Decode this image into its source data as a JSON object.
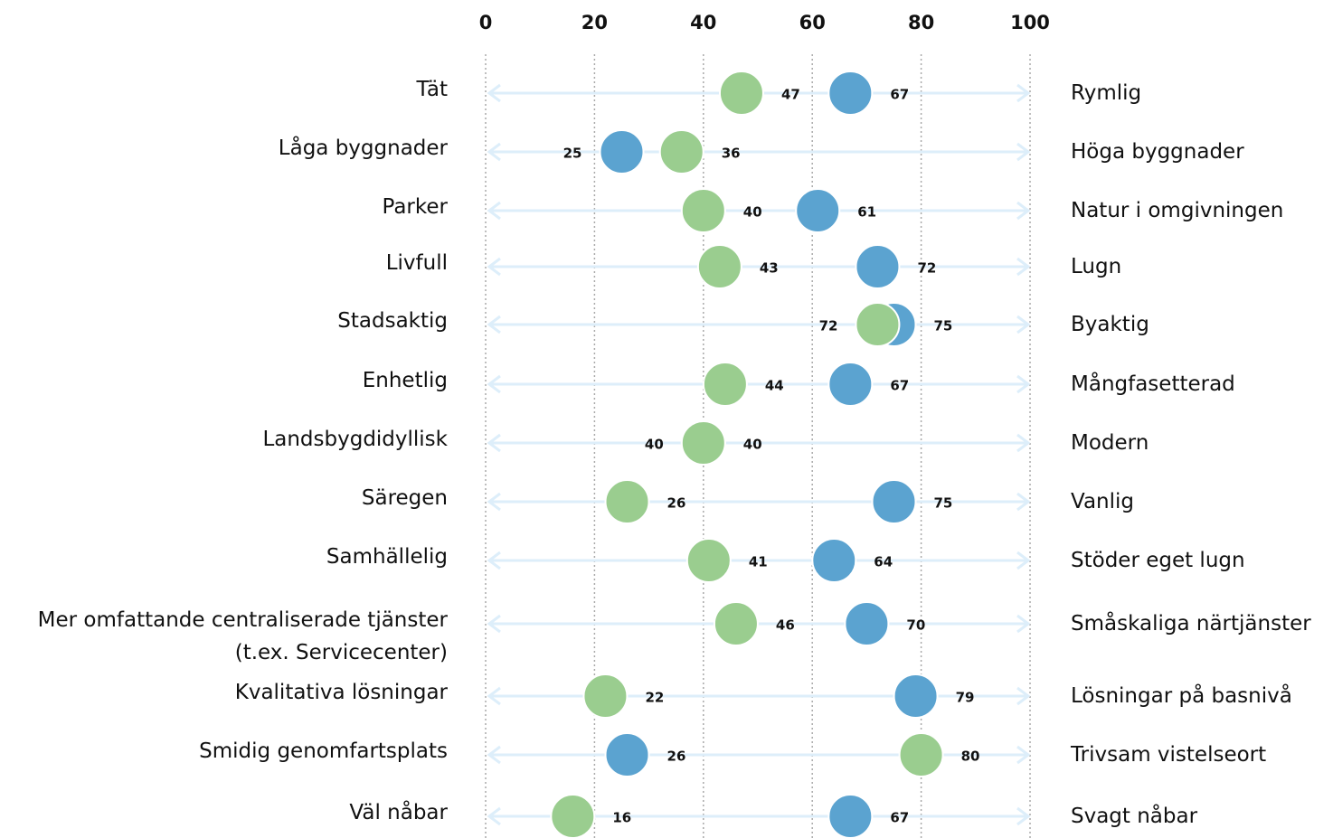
{
  "chart_data": {
    "type": "dot",
    "categories": [
      "Tät",
      "Låga byggnader",
      "Parker",
      "Livfull",
      "Stadsaktig",
      "Enhetlig",
      "Landsbygdidyllisk",
      "Säregen",
      "Samhällelig",
      "Mer omfattande centraliserade tjänster\n(t.ex. Servicecenter)",
      "Kvalitativa lösningar",
      "Smidig genomfartsplats",
      "Väl nåbar"
    ],
    "right_categories": [
      "Rymlig",
      "Höga byggnader",
      "Natur i omgivningen",
      "Lugn",
      "Byaktig",
      "Mångfasetterad",
      "Modern",
      "Vanlig",
      "Stöder eget lugn",
      "Småskaliga närtjänster",
      "Lösningar på basnivå",
      "Trivsam vistelseort",
      "Svagt nåbar"
    ],
    "series": [
      {
        "color": "#5ba3d0",
        "values": [
          67,
          25,
          61,
          72,
          75,
          67,
          40,
          75,
          64,
          70,
          79,
          26,
          67
        ]
      },
      {
        "color": "#9acd8f",
        "values": [
          47,
          36,
          40,
          43,
          72,
          44,
          40,
          26,
          41,
          46,
          22,
          80,
          16
        ]
      }
    ],
    "xlim": [
      0,
      100
    ],
    "xticks": [
      0,
      20,
      40,
      60,
      80,
      100
    ],
    "grid": true
  }
}
